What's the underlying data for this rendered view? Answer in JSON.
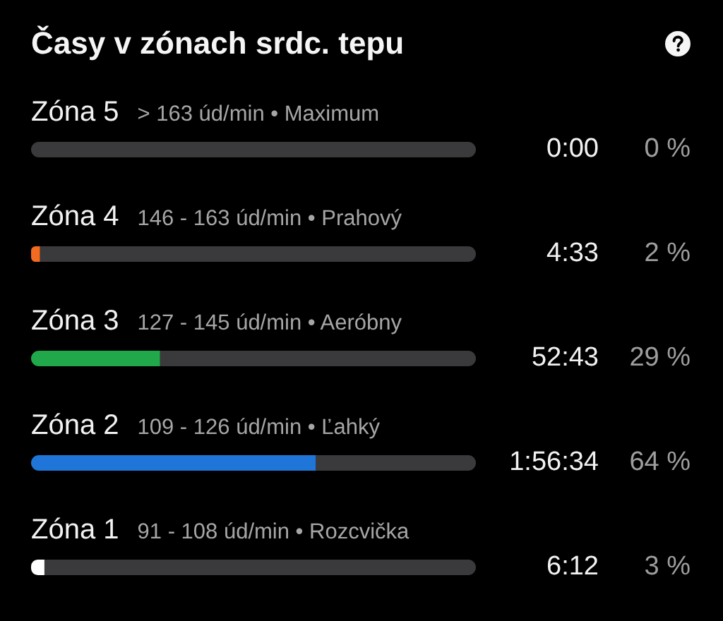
{
  "chart_data": {
    "type": "bar",
    "title": "Časy v zónach srdc. tepu",
    "orientation": "horizontal",
    "stacked": true,
    "categories": [
      "Zóna 5",
      "Zóna 4",
      "Zóna 3",
      "Zóna 2",
      "Zóna 1"
    ],
    "series": [
      {
        "values": [
          0,
          2,
          29,
          64,
          3
        ],
        "colors": [
          null,
          "#f26b21",
          "#20a84a",
          "#1f76d8",
          "#ffffff"
        ],
        "value_labels": [
          "0 %",
          "2 %",
          "29 %",
          "64 %",
          "3 %"
        ]
      },
      {
        "values": [
          100,
          98,
          71,
          36,
          97
        ],
        "color": "#3a3a3c"
      }
    ],
    "xlim": [
      0,
      100
    ],
    "tick_labels": "y",
    "annotations": [
      "> 163 úd/min • Maximum",
      "146 - 163 úd/min • Prahový",
      "127 - 145 úd/min • Aeróbny",
      "109 - 126 úd/min • Ľahký",
      "91 - 108 úd/min • Rozcvička",
      "0:00",
      "4:33",
      "52:43",
      "1:56:34",
      "6:12"
    ]
  }
}
